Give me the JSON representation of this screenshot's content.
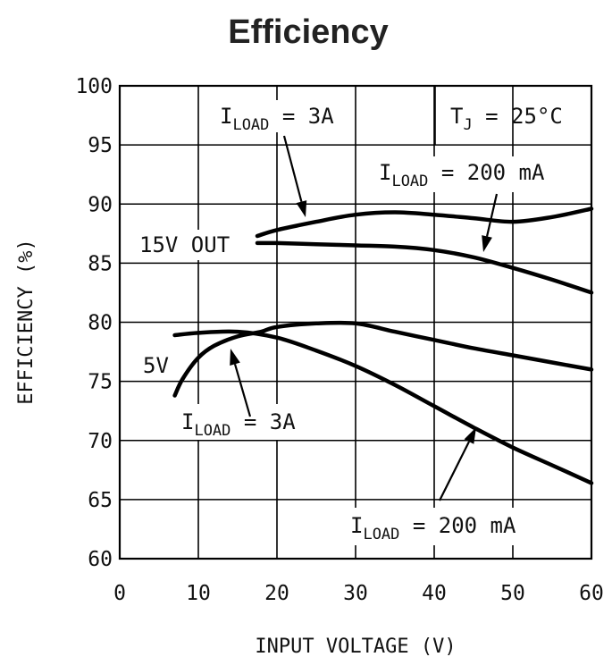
{
  "chart_data": {
    "type": "line",
    "title": "Efficiency",
    "xlabel": "INPUT VOLTAGE (V)",
    "ylabel": "EFFICIENCY (%)",
    "xlim": [
      0,
      60
    ],
    "ylim": [
      60,
      100
    ],
    "xticks": [
      0,
      10,
      20,
      30,
      40,
      50,
      60
    ],
    "yticks": [
      60,
      65,
      70,
      75,
      80,
      85,
      90,
      95,
      100
    ],
    "grid": true,
    "series": [
      {
        "id": "v15_3a",
        "points": [
          [
            17.5,
            87.3
          ],
          [
            20,
            87.8
          ],
          [
            25,
            88.5
          ],
          [
            30,
            89.1
          ],
          [
            35,
            89.3
          ],
          [
            40,
            89.1
          ],
          [
            45,
            88.8
          ],
          [
            50,
            88.5
          ],
          [
            55,
            88.9
          ],
          [
            60,
            89.6
          ]
        ]
      },
      {
        "id": "v15_200ma",
        "points": [
          [
            17.5,
            86.7
          ],
          [
            20,
            86.7
          ],
          [
            25,
            86.6
          ],
          [
            30,
            86.5
          ],
          [
            35,
            86.4
          ],
          [
            40,
            86.1
          ],
          [
            45,
            85.5
          ],
          [
            50,
            84.6
          ],
          [
            55,
            83.6
          ],
          [
            60,
            82.5
          ]
        ]
      },
      {
        "id": "v5_3a",
        "points": [
          [
            7,
            73.8
          ],
          [
            8,
            75.2
          ],
          [
            10,
            77.0
          ],
          [
            12,
            78.0
          ],
          [
            15,
            78.8
          ],
          [
            18,
            79.2
          ],
          [
            20,
            79.6
          ],
          [
            25,
            79.9
          ],
          [
            30,
            79.9
          ],
          [
            35,
            79.2
          ],
          [
            40,
            78.5
          ],
          [
            45,
            77.8
          ],
          [
            50,
            77.2
          ],
          [
            55,
            76.6
          ],
          [
            60,
            76.0
          ]
        ]
      },
      {
        "id": "v5_200ma",
        "points": [
          [
            7,
            78.9
          ],
          [
            10,
            79.1
          ],
          [
            15,
            79.2
          ],
          [
            20,
            78.7
          ],
          [
            25,
            77.6
          ],
          [
            30,
            76.3
          ],
          [
            35,
            74.7
          ],
          [
            40,
            72.9
          ],
          [
            45,
            71.1
          ],
          [
            50,
            69.4
          ],
          [
            55,
            67.9
          ],
          [
            60,
            66.4
          ]
        ]
      }
    ],
    "annotations": [
      {
        "id": "a15_3a",
        "main": "I",
        "sub": "LOAD",
        "rest": " = 3A"
      },
      {
        "id": "tj",
        "main": "T",
        "sub": "J",
        "rest": " = 25°C"
      },
      {
        "id": "a15_200",
        "main": "I",
        "sub": "LOAD",
        "rest": " = 200 mA"
      },
      {
        "id": "l15",
        "main": "15V OUT",
        "sub": "",
        "rest": ""
      },
      {
        "id": "l5",
        "main": "5V",
        "sub": "",
        "rest": ""
      },
      {
        "id": "a5_3a",
        "main": "I",
        "sub": "LOAD",
        "rest": " = 3A"
      },
      {
        "id": "a5_200",
        "main": "I",
        "sub": "LOAD",
        "rest": " = 200 mA"
      }
    ]
  }
}
